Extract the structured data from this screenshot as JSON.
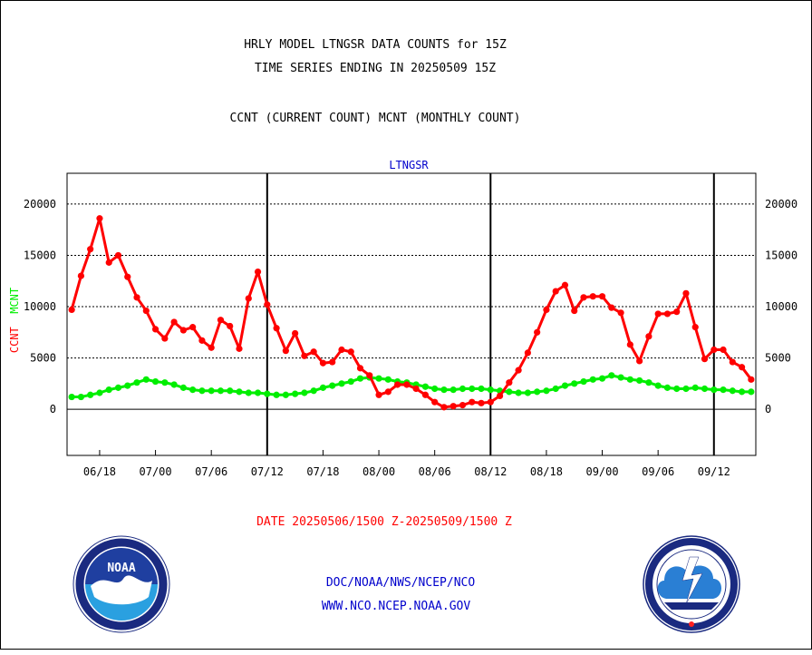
{
  "title_line1": "HRLY MODEL LTNGSR DATA COUNTS for 15Z",
  "title_line2": "TIME SERIES ENDING IN 20250509 15Z",
  "subtitle": "CCNT (CURRENT COUNT) MCNT (MONTHLY COUNT)",
  "plot_label": "LTNGSR",
  "ylabel_ccnt": "CCNT",
  "ylabel_mcnt": "MCNT",
  "date_range": "DATE 20250506/1500 Z-20250509/1500 Z",
  "footer_line1": "DOC/NOAA/NWS/NCEP/NCO",
  "footer_line2": "WWW.NCO.NCEP.NOAA.GOV",
  "noaa_logo_text": "NOAA",
  "colors": {
    "ccnt": "#ff0000",
    "mcnt": "#00ee00",
    "label_blue": "#0000cc",
    "date_red": "#ff0000"
  },
  "chart_data": {
    "type": "line",
    "title": "HRLY MODEL LTNGSR DATA COUNTS for 15Z",
    "ylim": [
      -4500,
      23000
    ],
    "y_ticks": [
      0,
      5000,
      10000,
      15000,
      20000
    ],
    "x_ticks": [
      {
        "label": "06/18",
        "x": 3
      },
      {
        "label": "07/00",
        "x": 9
      },
      {
        "label": "07/06",
        "x": 15
      },
      {
        "label": "07/12",
        "x": 21
      },
      {
        "label": "07/18",
        "x": 27
      },
      {
        "label": "08/00",
        "x": 33
      },
      {
        "label": "08/06",
        "x": 39
      },
      {
        "label": "08/12",
        "x": 45
      },
      {
        "label": "08/18",
        "x": 51
      },
      {
        "label": "09/00",
        "x": 57
      },
      {
        "label": "09/06",
        "x": 63
      },
      {
        "label": "09/12",
        "x": 69
      }
    ],
    "day_dividers": [
      21,
      45,
      69
    ],
    "grid": "horizontal",
    "series": [
      {
        "name": "CCNT",
        "color": "#ff0000",
        "values": [
          9700,
          13000,
          15600,
          18600,
          14300,
          15000,
          12900,
          10900,
          9600,
          7800,
          6900,
          8500,
          7700,
          8000,
          6700,
          6000,
          8700,
          8100,
          5900,
          10800,
          13400,
          10200,
          7900,
          5700,
          7400,
          5200,
          5600,
          4500,
          4600,
          5800,
          5600,
          4000,
          3300,
          1400,
          1700,
          2400,
          2400,
          2000,
          1400,
          700,
          200,
          300,
          400,
          700,
          600,
          700,
          1300,
          2600,
          3800,
          5500,
          7500,
          9700,
          11500,
          12100,
          9600,
          10900,
          11000,
          11000,
          9900,
          9400,
          6300,
          4700,
          7100,
          9300,
          9300,
          9500,
          11300,
          8000,
          4900,
          5800,
          5800,
          4600,
          4100,
          2900
        ]
      },
      {
        "name": "MCNT",
        "color": "#00ee00",
        "values": [
          1200,
          1200,
          1400,
          1600,
          1900,
          2100,
          2300,
          2600,
          2900,
          2700,
          2600,
          2400,
          2100,
          1900,
          1800,
          1800,
          1800,
          1800,
          1700,
          1600,
          1600,
          1500,
          1400,
          1400,
          1500,
          1600,
          1800,
          2100,
          2300,
          2500,
          2700,
          3000,
          3100,
          3000,
          2900,
          2700,
          2600,
          2400,
          2200,
          2000,
          1900,
          1900,
          2000,
          2000,
          2000,
          1900,
          1800,
          1700,
          1600,
          1600,
          1700,
          1800,
          2000,
          2300,
          2500,
          2700,
          2900,
          3000,
          3300,
          3100,
          2900,
          2800,
          2600,
          2300,
          2100,
          2000,
          2000,
          2100,
          2000,
          1900,
          1900,
          1800,
          1700,
          1700
        ]
      }
    ]
  }
}
